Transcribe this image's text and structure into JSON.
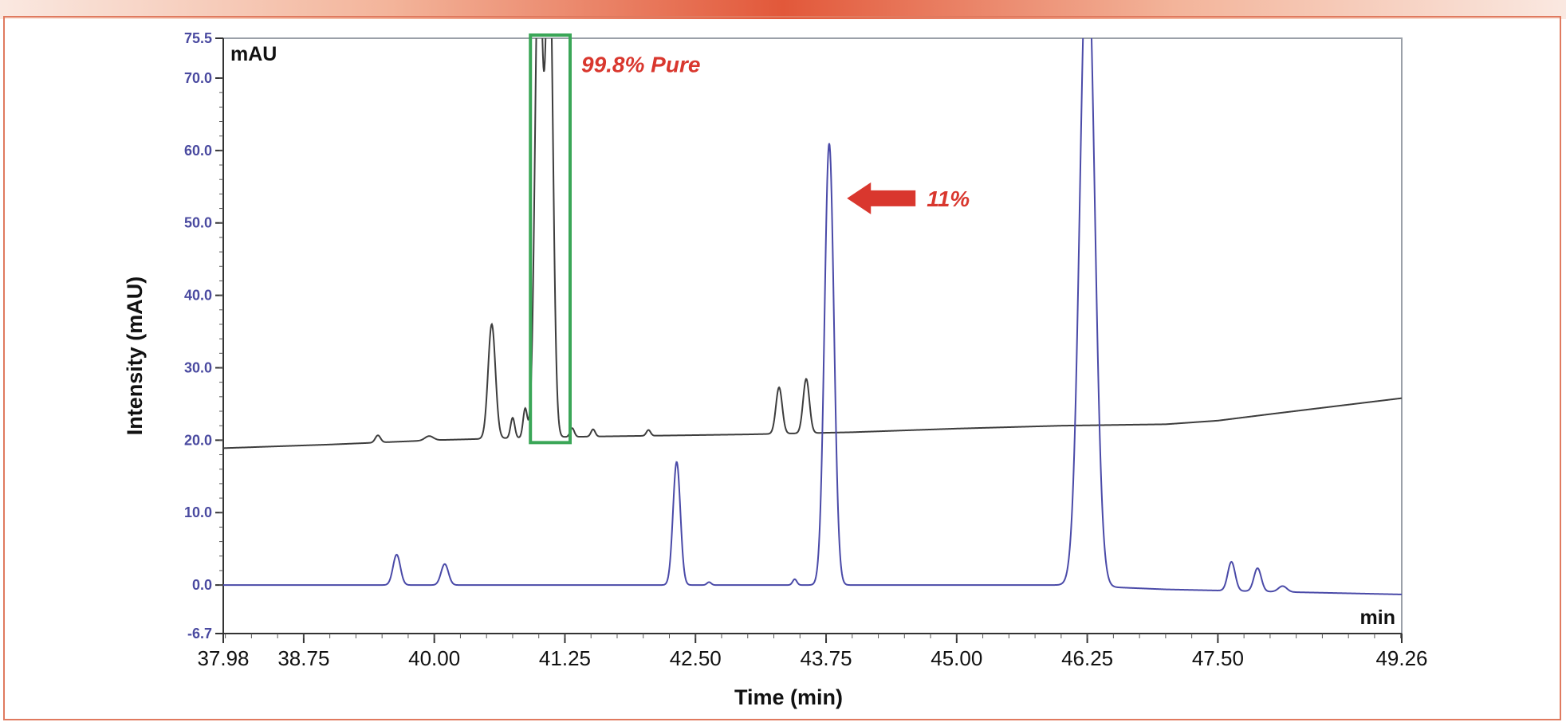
{
  "chart_data": {
    "type": "line",
    "ylabel": "Intensity (mAU)",
    "xlabel": "Time (min)",
    "y_unit_label": "mAU",
    "x_unit_label": "min",
    "xlim": [
      37.98,
      49.26
    ],
    "ylim": [
      -6.7,
      75.5
    ],
    "x_ticks": [
      "37.98",
      "38.75",
      "40.00",
      "41.25",
      "42.50",
      "43.75",
      "45.00",
      "46.25",
      "47.50",
      "49.26"
    ],
    "y_ticks": [
      "-6.7",
      "0.0",
      "10.0",
      "20.0",
      "30.0",
      "40.0",
      "50.0",
      "60.0",
      "70.0",
      "75.5"
    ],
    "grid": false,
    "series": [
      {
        "color": "#3d3d3d",
        "baseline": [
          [
            37.98,
            18.9
          ],
          [
            39.0,
            19.4
          ],
          [
            40.0,
            20.0
          ],
          [
            41.0,
            20.4
          ],
          [
            42.0,
            20.6
          ],
          [
            43.0,
            20.8
          ],
          [
            44.0,
            21.1
          ],
          [
            45.0,
            21.6
          ],
          [
            46.0,
            22.0
          ],
          [
            47.0,
            22.2
          ],
          [
            47.5,
            22.7
          ],
          [
            48.0,
            23.6
          ],
          [
            49.26,
            25.8
          ]
        ],
        "peaks": [
          [
            39.46,
            1.0,
            0.025
          ],
          [
            39.95,
            0.6,
            0.04
          ],
          [
            40.55,
            15.8,
            0.035
          ],
          [
            40.75,
            2.8,
            0.02
          ],
          [
            40.87,
            4.0,
            0.02
          ],
          [
            41.0,
            70.0,
            0.035
          ],
          [
            41.1,
            70.0,
            0.035
          ],
          [
            41.32,
            1.2,
            0.02
          ],
          [
            41.52,
            1.0,
            0.02
          ],
          [
            42.05,
            0.8,
            0.02
          ],
          [
            43.3,
            6.4,
            0.03
          ],
          [
            43.56,
            7.5,
            0.03
          ]
        ]
      },
      {
        "color": "#4a4aa8",
        "baseline": [
          [
            37.98,
            0.0
          ],
          [
            43.0,
            0.0
          ],
          [
            46.0,
            0.0
          ],
          [
            47.0,
            -0.6
          ],
          [
            49.26,
            -1.3
          ]
        ],
        "peaks": [
          [
            39.64,
            4.2,
            0.035
          ],
          [
            40.1,
            2.9,
            0.035
          ],
          [
            42.32,
            17.0,
            0.035
          ],
          [
            42.63,
            0.4,
            0.02
          ],
          [
            43.45,
            0.8,
            0.02
          ],
          [
            43.78,
            61.0,
            0.045
          ],
          [
            46.25,
            90.0,
            0.07
          ],
          [
            47.63,
            4.0,
            0.035
          ],
          [
            47.88,
            3.2,
            0.035
          ],
          [
            48.12,
            0.8,
            0.04
          ]
        ]
      }
    ],
    "annotations": [
      {
        "text": "99.8% Pure",
        "color": "#d9372e",
        "x_range": [
          40.92,
          41.3
        ],
        "y_range": [
          20.0,
          75.5
        ],
        "box_color": "#3aa657"
      },
      {
        "text": "11%",
        "color": "#d9372e",
        "x": 43.95,
        "y": 53.4,
        "arrow_color": "#d9372e"
      }
    ]
  }
}
